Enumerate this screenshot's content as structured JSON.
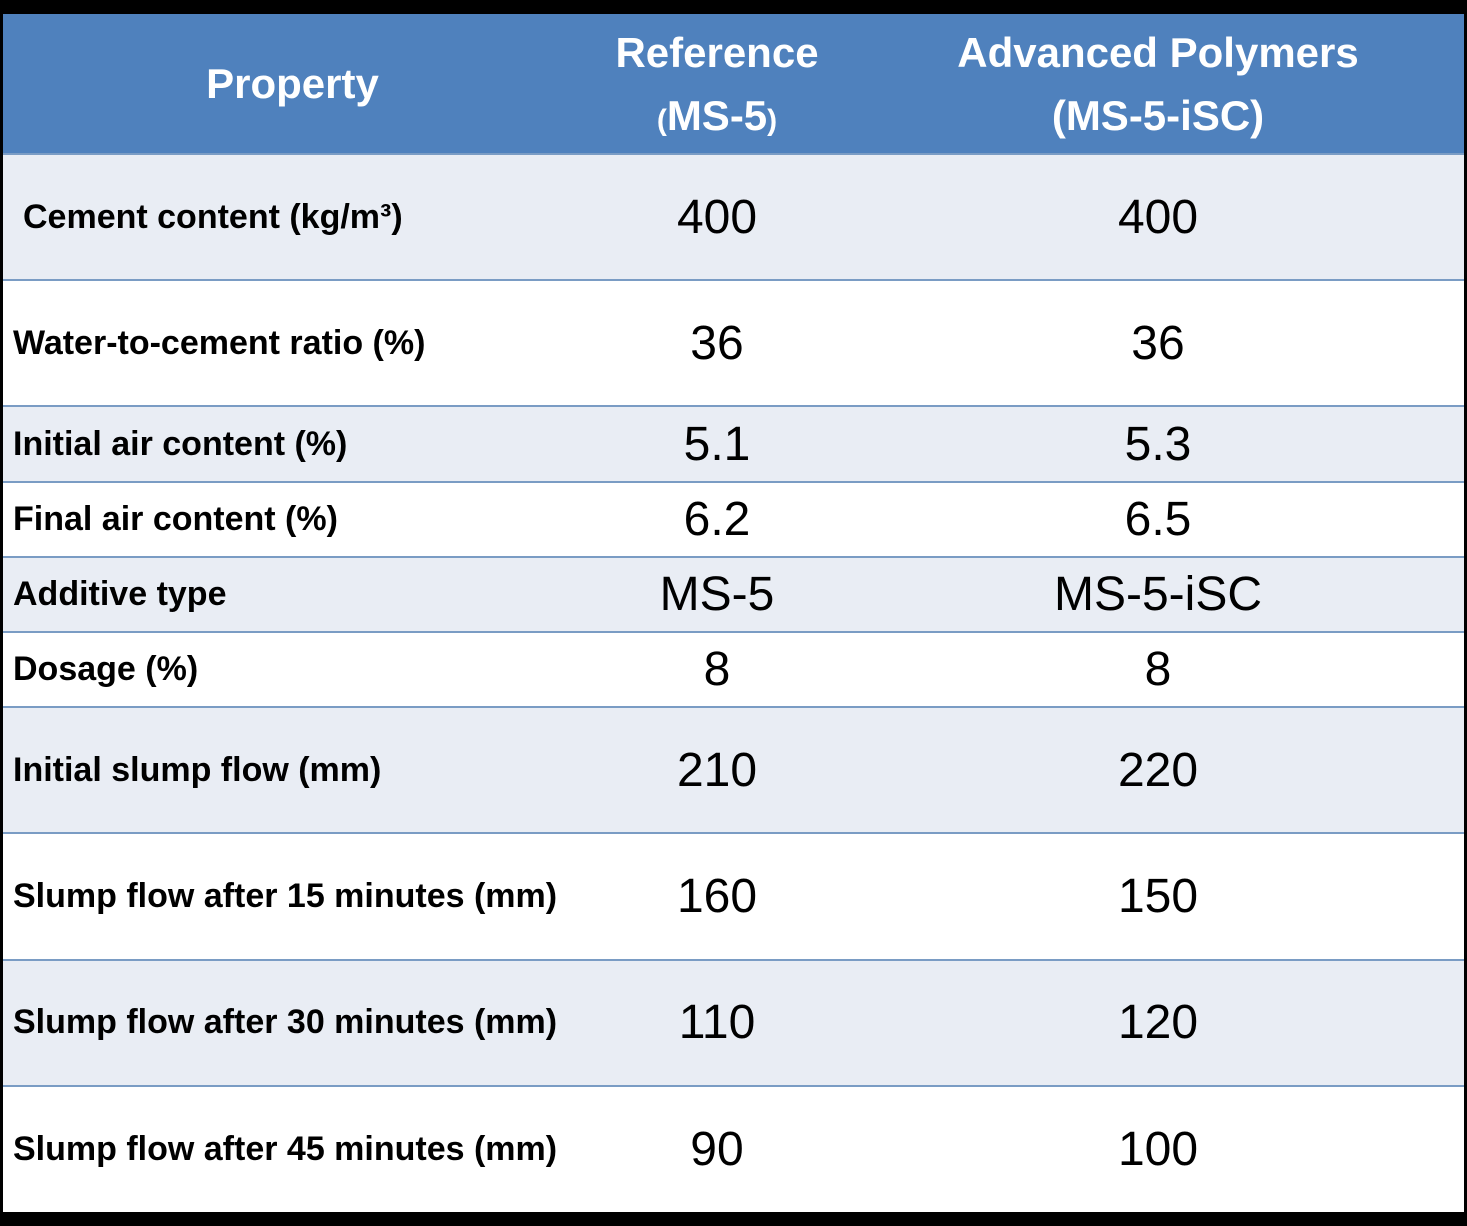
{
  "table": {
    "header": {
      "property": "Property",
      "reference_line1": "Reference",
      "reference_line2_open": "(",
      "reference_line2_main": "MS-5",
      "reference_line2_close": ")",
      "advanced_line1": "Advanced Polymers",
      "advanced_line2": "(MS-5-iSC)"
    },
    "rows": [
      {
        "property": "Cement content (kg/m³)",
        "reference": "400",
        "advanced": "400"
      },
      {
        "property": "Water-to-cement ratio (%)",
        "reference": "36",
        "advanced": "36"
      },
      {
        "property": "Initial air content (%)",
        "reference": "5.1",
        "advanced": "5.3"
      },
      {
        "property": "Final air content (%)",
        "reference": "6.2",
        "advanced": "6.5"
      },
      {
        "property": "Additive type",
        "reference": "MS-5",
        "advanced": "MS-5-iSC"
      },
      {
        "property": "Dosage (%)",
        "reference": "8",
        "advanced": "8"
      },
      {
        "property": "Initial slump flow (mm)",
        "reference": "210",
        "advanced": "220"
      },
      {
        "property": "Slump flow after 15 minutes (mm)",
        "reference": "160",
        "advanced": "150"
      },
      {
        "property": "Slump flow after 30 minutes (mm)",
        "reference": "110",
        "advanced": "120"
      },
      {
        "property": "Slump flow after 45 minutes (mm)",
        "reference": "90",
        "advanced": "100"
      }
    ]
  },
  "colors": {
    "header_background": "#4f81bd",
    "header_text": "#ffffff",
    "row_shade": "#e9edf4",
    "row_plain": "#ffffff",
    "row_divider": "#7a9cc4",
    "frame": "#000000"
  }
}
